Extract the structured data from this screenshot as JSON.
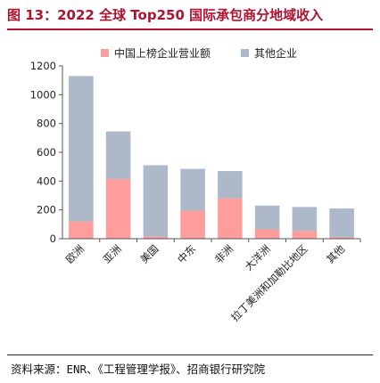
{
  "figure": {
    "title": "图 13：2022 全球 Top250 国际承包商分地域收入",
    "source": "资料来源：ENR、《工程管理学报》、招商银行研究院"
  },
  "colors": {
    "title": "#b0122f",
    "china_listed": "#ff9d9d",
    "other": "#adb8c9",
    "axis": "#555555"
  },
  "chart_data": {
    "type": "bar",
    "stacked": true,
    "categories": [
      "欧洲",
      "亚洲",
      "美国",
      "中东",
      "非洲",
      "大洋洲",
      "拉丁美洲和加勒比地区",
      "其他"
    ],
    "series": [
      {
        "name": "中国上榜企业营业额",
        "values": [
          120,
          415,
          15,
          195,
          280,
          65,
          55,
          10
        ]
      },
      {
        "name": "其他企业",
        "values": [
          1010,
          330,
          495,
          290,
          190,
          165,
          165,
          200
        ]
      }
    ],
    "yticks": [
      0,
      200,
      400,
      600,
      800,
      1000,
      1200
    ],
    "ylim": [
      0,
      1200
    ],
    "legend_position": "top",
    "grid": false
  }
}
